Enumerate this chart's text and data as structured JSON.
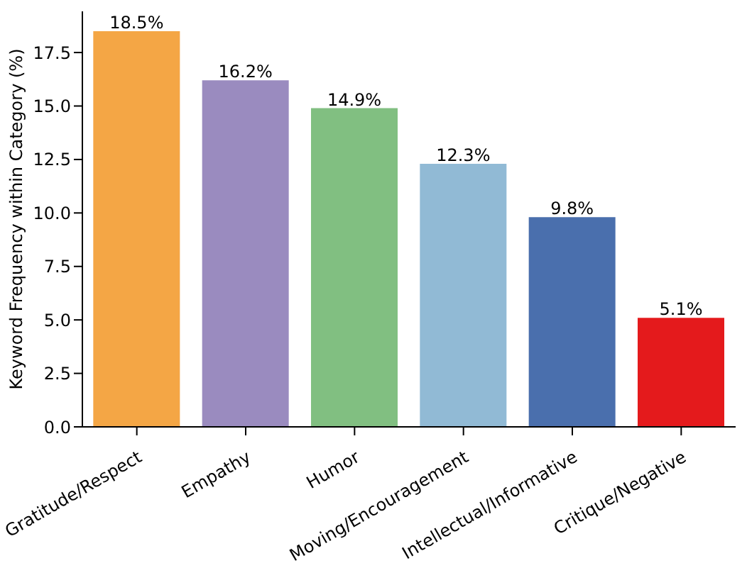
{
  "chart_data": {
    "type": "bar",
    "ylabel": "Keyword Frequency within Category (%)",
    "categories": [
      "Gratitude/Respect",
      "Empathy",
      "Humor",
      "Moving/Encouragement",
      "Intellectual/Informative",
      "Critique/Negative"
    ],
    "values": [
      18.5,
      16.2,
      14.9,
      12.3,
      9.8,
      5.1
    ],
    "colors": [
      "#f4a645",
      "#9a8bbf",
      "#81bf81",
      "#91bad5",
      "#4a6fad",
      "#e41a1c"
    ],
    "value_labels": [
      "18.5%",
      "16.2%",
      "14.9%",
      "12.3%",
      "9.8%",
      "5.1%"
    ],
    "ylim": [
      0,
      19.425
    ],
    "yticks": [
      {
        "value": 0,
        "label": "0.0"
      },
      {
        "value": 2.5,
        "label": "2.5"
      },
      {
        "value": 5,
        "label": "5.0"
      },
      {
        "value": 7.5,
        "label": "7.5"
      },
      {
        "value": 10,
        "label": "10.0"
      },
      {
        "value": 12.5,
        "label": "12.5"
      },
      {
        "value": 15,
        "label": "15.0"
      },
      {
        "value": 17.5,
        "label": "17.5"
      }
    ],
    "grid": false,
    "legend": false
  }
}
